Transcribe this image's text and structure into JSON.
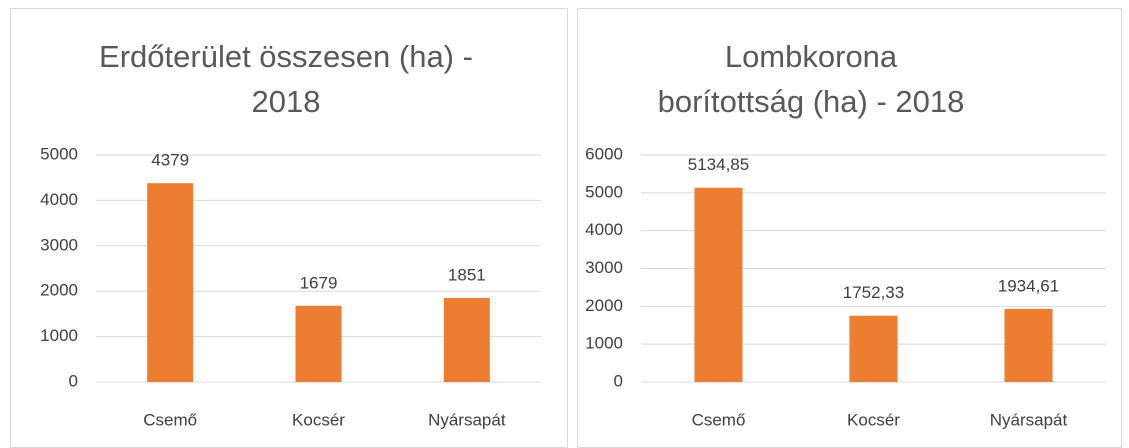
{
  "chart_data": [
    {
      "type": "bar",
      "title": "Erdőterület összesen (ha) - 2018",
      "categories": [
        "Csemő",
        "Kocsér",
        "Nyársapát"
      ],
      "values": [
        4379,
        1679,
        1851
      ],
      "color": "#ed7d31",
      "ylim": [
        0,
        5000
      ],
      "yticks": [
        0,
        1000,
        2000,
        3000,
        4000,
        5000
      ],
      "grid": true
    },
    {
      "type": "bar",
      "title": "Lombkorona borítottság (ha) - 2018",
      "categories": [
        "Csemő",
        "Kocsér",
        "Nyársapát"
      ],
      "values": [
        5134.85,
        1752.33,
        1934.61
      ],
      "value_labels": [
        "5134,85",
        "1752,33",
        "1934,61"
      ],
      "color": "#ed7d31",
      "ylim": [
        0,
        6000
      ],
      "yticks": [
        0,
        1000,
        2000,
        3000,
        4000,
        5000,
        6000
      ],
      "grid": true
    }
  ]
}
